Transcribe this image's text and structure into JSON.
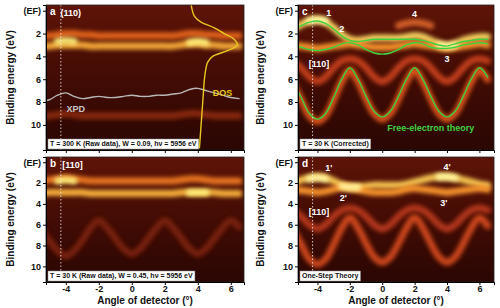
{
  "chart_data": [
    {
      "type": "band_map",
      "panel_label": "a",
      "note": "T = 300 K (Raw data), W = 0.09, hν = 5956 eV",
      "ylabel": "Binding energy (eV)",
      "tick_labels": "y",
      "xlim": [
        -5.2,
        6.8
      ],
      "xticks": [
        -4,
        -2,
        0,
        2,
        4,
        6
      ],
      "ylim": [
        -0.5,
        12.2
      ],
      "yticks": [
        {
          "value": 0,
          "label": "(EF)"
        },
        2,
        4,
        6,
        8,
        10
      ],
      "direction_x": -4.3,
      "x": [
        -5.5,
        -5,
        -4.5,
        -4,
        -3.5,
        -3,
        -2.5,
        -2,
        -1.5,
        -1,
        -0.5,
        0,
        0.5,
        1,
        1.5,
        2,
        2.5,
        3,
        3.5,
        4,
        4.5,
        5,
        5.5,
        6,
        6.5
      ],
      "series": [
        {
          "line_style": "glow",
          "color": "#e8661a",
          "values": [
            2.2,
            2.2,
            2.1,
            2.0,
            2.0,
            2.1,
            2.1,
            2.2,
            2.2,
            2.2,
            2.2,
            2.2,
            2.2,
            2.2,
            2.2,
            2.2,
            2.2,
            2.1,
            2.0,
            2.0,
            2.1,
            2.1,
            2.2,
            2.2,
            2.2
          ]
        },
        {
          "line_style": "glow",
          "color": "#ffb13a",
          "values": [
            3.1,
            3.1,
            3.0,
            3.0,
            3.0,
            3.0,
            3.1,
            3.1,
            3.1,
            3.1,
            3.1,
            3.1,
            3.1,
            3.1,
            3.1,
            3.1,
            3.1,
            3.0,
            2.9,
            2.9,
            3.0,
            3.0,
            3.1,
            3.1,
            3.1
          ]
        },
        {
          "line_style": "glow",
          "color": "#fff07a",
          "values": [
            null,
            null,
            2.7,
            2.6,
            2.7,
            null,
            null,
            null,
            null,
            null,
            null,
            null,
            null,
            null,
            null,
            null,
            null,
            null,
            2.8,
            2.7,
            2.8,
            null,
            null,
            null,
            null
          ]
        },
        {
          "line_style": "glow",
          "color": "#8c2a0c",
          "values": [
            9.2,
            9.2,
            9.1,
            9.0,
            9.1,
            9.2,
            9.2,
            9.2,
            9.2,
            9.2,
            9.2,
            9.2,
            9.2,
            9.2,
            9.2,
            9.2,
            9.2,
            9.1,
            9.0,
            9.0,
            9.1,
            9.2,
            9.2,
            9.2,
            9.2
          ]
        },
        {
          "line_style": "solid",
          "color": "#b8b8b8",
          "values": [
            8.0,
            7.8,
            7.4,
            7.2,
            7.5,
            7.7,
            7.6,
            7.5,
            7.6,
            7.6,
            7.5,
            7.4,
            7.5,
            7.5,
            7.4,
            7.4,
            7.3,
            7.2,
            6.9,
            6.8,
            7.0,
            7.2,
            7.4,
            7.6,
            7.7
          ]
        },
        {
          "line_style": "solid",
          "color": "#e8c81e",
          "x": [
            3.6,
            3.8,
            4.2,
            5.0,
            5.6,
            6.2,
            6.4,
            5.8,
            4.9,
            4.6,
            4.5,
            4.4,
            4.35,
            4.3,
            4.25,
            4.2,
            4.15,
            4.1
          ],
          "values": [
            -0.5,
            0.5,
            1.0,
            1.5,
            2.0,
            2.5,
            3.0,
            3.5,
            4.0,
            4.5,
            5,
            6,
            7,
            8,
            9,
            10,
            11,
            12
          ]
        }
      ],
      "annotations": [
        {
          "text": "(110)",
          "x": -3.7,
          "y": 0.2,
          "color": "#ffffff"
        },
        {
          "text": "XPD",
          "x": -3.4,
          "y": 8.6,
          "color": "#c8c8c8"
        },
        {
          "text": "DOS",
          "x": 5.5,
          "y": 7.2,
          "color": "#e8c81e"
        }
      ]
    },
    {
      "type": "band_map",
      "panel_label": "b",
      "note": "T = 30 K (Raw data), W = 0.45, hν = 5956 eV",
      "ylabel": "Binding energy (eV)",
      "xlabel": "Angle of detector (°)",
      "xlim": [
        -5.2,
        6.8
      ],
      "xticks": [
        -4,
        -2,
        0,
        2,
        4,
        6
      ],
      "ylim": [
        -0.5,
        11.5
      ],
      "yticks": [
        {
          "value": 0,
          "label": "(EF)"
        },
        2,
        4,
        6,
        8,
        10
      ],
      "direction_x": -4.3,
      "x": [
        -5.5,
        -5,
        -4.5,
        -4,
        -3.5,
        -3,
        -2.5,
        -2,
        -1.5,
        -1,
        -0.5,
        0,
        0.5,
        1,
        1.5,
        2,
        2.5,
        3,
        3.5,
        4,
        4.5,
        5,
        5.5,
        6,
        6.5
      ],
      "series": [
        {
          "line_style": "glow",
          "color": "#f07a22",
          "values": [
            1.8,
            1.7,
            1.6,
            1.5,
            1.6,
            1.7,
            1.8,
            1.8,
            1.8,
            1.8,
            1.8,
            1.8,
            1.8,
            1.8,
            1.8,
            1.8,
            1.8,
            1.7,
            1.6,
            1.6,
            1.7,
            1.8,
            1.8,
            1.8,
            1.8
          ]
        },
        {
          "line_style": "glow",
          "color": "#ffb83e",
          "values": [
            3.0,
            2.9,
            2.9,
            2.9,
            2.9,
            2.9,
            3.0,
            3.0,
            3.0,
            3.0,
            3.0,
            3.0,
            3.0,
            3.0,
            3.0,
            3.0,
            3.0,
            2.9,
            2.9,
            2.9,
            2.9,
            2.9,
            3.0,
            3.0,
            3.0
          ]
        },
        {
          "line_style": "glow",
          "color": "#fff07a",
          "values": [
            null,
            null,
            1.8,
            1.7,
            1.8,
            null,
            null,
            null,
            null,
            null,
            null,
            null,
            null,
            null,
            null,
            null,
            null,
            null,
            2.9,
            2.9,
            2.9,
            null,
            null,
            null,
            null
          ]
        },
        {
          "line_style": "glow",
          "color": "#7a220a",
          "values": [
            6.5,
            7.5,
            8.5,
            9.0,
            8.5,
            7.5,
            6.3,
            5.6,
            6.3,
            7.3,
            8.3,
            8.8,
            8.3,
            7.3,
            6.3,
            5.6,
            6.3,
            7.3,
            8.3,
            8.8,
            8.3,
            7.3,
            6.3,
            5.6,
            6.2
          ]
        }
      ],
      "annotations": [
        {
          "text": "[110]",
          "x": -3.6,
          "y": 0.3,
          "color": "#ffffff"
        }
      ]
    },
    {
      "type": "band_map",
      "panel_label": "c",
      "note": "T = 30 K (Corrected)",
      "ylabel": "Binding energy (eV)",
      "tick_labels": "y",
      "xlim": [
        -5.2,
        6.9
      ],
      "xticks": [
        -4,
        -2,
        0,
        2,
        4,
        6
      ],
      "ylim": [
        -0.5,
        12.2
      ],
      "yticks": [
        {
          "value": 0,
          "label": "(EF)"
        },
        2,
        4,
        6,
        8,
        10
      ],
      "direction_x": -4.3,
      "x": [
        -5.5,
        -5,
        -4.5,
        -4,
        -3.5,
        -3,
        -2.5,
        -2,
        -1.5,
        -1,
        -0.5,
        0,
        0.5,
        1,
        1.5,
        2,
        2.5,
        3,
        3.5,
        4,
        4.5,
        5,
        5.5,
        6,
        6.5
      ],
      "series": [
        {
          "line_style": "glow",
          "color": "#ffe066",
          "values": [
            1.6,
            1.2,
            0.9,
            0.8,
            1.0,
            1.5,
            2.1,
            2.5,
            2.6,
            2.5,
            2.4,
            2.4,
            2.4,
            2.4,
            2.3,
            2.2,
            2.3,
            2.6,
            2.9,
            3.1,
            2.9,
            2.6,
            2.4,
            2.3,
            2.3
          ]
        },
        {
          "line_style": "glow",
          "color": "#ff9a2e",
          "values": [
            3.0,
            3.1,
            3.2,
            3.3,
            3.2,
            3.1,
            3.0,
            2.9,
            3.0,
            3.1,
            3.2,
            3.2,
            3.2,
            3.1,
            3.0,
            2.9,
            3.0,
            3.1,
            3.2,
            3.3,
            3.2,
            3.1,
            3.0,
            2.9,
            3.0
          ]
        },
        {
          "line_style": "glow",
          "color": "#d8642a",
          "values": [
            null,
            null,
            null,
            null,
            null,
            null,
            null,
            null,
            null,
            null,
            null,
            null,
            null,
            1.3,
            1.1,
            1.0,
            1.1,
            1.3,
            null,
            null,
            null,
            null,
            null,
            null,
            null
          ]
        },
        {
          "line_style": "glow",
          "color": "#e0561c",
          "values": [
            6.4,
            7.8,
            9.2,
            9.7,
            9.2,
            7.8,
            6.2,
            5.2,
            6.2,
            7.7,
            9.0,
            9.5,
            9.0,
            7.7,
            6.2,
            5.2,
            6.2,
            7.7,
            9.0,
            9.5,
            9.0,
            7.7,
            6.2,
            5.2,
            6.0
          ]
        },
        {
          "line_style": "glow",
          "color": "#c8401a",
          "values": [
            4.5,
            5.0,
            5.8,
            6.2,
            5.8,
            5.0,
            4.4,
            4.2,
            4.4,
            5.0,
            5.8,
            6.2,
            5.8,
            5.0,
            4.4,
            4.2,
            4.4,
            5.0,
            5.8,
            6.2,
            5.8,
            5.0,
            4.4,
            4.2,
            4.4
          ]
        },
        {
          "line_style": "glow",
          "color": "#fff6a0",
          "values": [
            null,
            null,
            0.9,
            0.8,
            0.9,
            null,
            null,
            null,
            null,
            null,
            null,
            null,
            null,
            null,
            null,
            null,
            null,
            null,
            3.0,
            3.1,
            3.0,
            null,
            null,
            null,
            null
          ]
        },
        {
          "line_style": "solid",
          "color": "#3fd23f",
          "values": [
            1.6,
            1.3,
            1.0,
            0.9,
            1.1,
            1.6,
            2.2,
            2.6,
            2.7,
            2.6,
            2.5,
            2.5,
            2.5,
            2.5,
            2.5,
            2.5,
            2.6,
            2.8,
            3.0,
            3.1,
            2.9,
            2.7,
            2.6,
            2.5,
            2.5
          ]
        },
        {
          "line_style": "solid",
          "color": "#3fd23f",
          "values": [
            3.0,
            3.2,
            3.4,
            3.5,
            3.4,
            3.2,
            2.9,
            2.8,
            3.0,
            3.4,
            3.7,
            3.8,
            3.7,
            3.4,
            3.0,
            2.8,
            2.9,
            3.2,
            3.3,
            3.3,
            3.2,
            3.0,
            2.9,
            2.8,
            2.9
          ]
        },
        {
          "line_style": "solid",
          "color": "#3fd23f",
          "values": [
            6.2,
            7.6,
            9.0,
            9.5,
            9.0,
            7.6,
            6.0,
            5.0,
            6.0,
            7.5,
            8.8,
            9.3,
            8.8,
            7.5,
            6.0,
            5.0,
            6.0,
            7.5,
            8.8,
            9.3,
            8.8,
            7.5,
            6.0,
            5.0,
            5.8
          ]
        }
      ],
      "annotations": [
        {
          "text": "1",
          "x": -3.3,
          "y": 0.2,
          "color": "#ffffff"
        },
        {
          "text": "2",
          "x": -2.5,
          "y": 1.6,
          "color": "#ffffff"
        },
        {
          "text": "3",
          "x": 4.0,
          "y": 4.2,
          "color": "#ffffff"
        },
        {
          "text": "4",
          "x": 2.0,
          "y": 0.3,
          "color": "#ffffff"
        },
        {
          "text": "[110]",
          "x": -3.9,
          "y": 4.7,
          "color": "#ffffff"
        },
        {
          "text": "Free-electron theory",
          "x": 3.0,
          "y": 10.3,
          "color": "#3fd23f"
        }
      ]
    },
    {
      "type": "band_map",
      "panel_label": "d",
      "note": "One-Step Theory",
      "ylabel": "Binding energy (eV)",
      "xlabel": "Angle of detector (°)",
      "xlim": [
        -5.2,
        6.9
      ],
      "xticks": [
        -4,
        -2,
        0,
        2,
        4,
        6
      ],
      "ylim": [
        -0.5,
        11.5
      ],
      "yticks": [
        {
          "value": 0,
          "label": "(EF)"
        },
        2,
        4,
        6,
        8,
        10
      ],
      "direction_x": -4.3,
      "x": [
        -5.5,
        -5,
        -4.5,
        -4,
        -3.5,
        -3,
        -2.5,
        -2,
        -1.5,
        -1,
        -0.5,
        0,
        0.5,
        1,
        1.5,
        2,
        2.5,
        3,
        3.5,
        4,
        4.5,
        5,
        5.5,
        6,
        6.5
      ],
      "series": [
        {
          "line_style": "glow",
          "color": "#ffcf55",
          "values": [
            2.0,
            1.7,
            1.5,
            1.4,
            1.5,
            1.8,
            2.2,
            2.4,
            2.4,
            2.3,
            2.2,
            2.2,
            2.2,
            2.2,
            2.1,
            1.9,
            1.7,
            1.5,
            1.4,
            1.4,
            1.5,
            1.7,
            1.9,
            2.1,
            2.2
          ]
        },
        {
          "line_style": "glow",
          "color": "#ff9a2e",
          "values": [
            2.6,
            2.7,
            2.8,
            2.9,
            2.8,
            2.6,
            2.4,
            2.4,
            2.6,
            2.8,
            2.9,
            2.9,
            2.9,
            2.8,
            2.6,
            2.5,
            2.6,
            2.7,
            2.8,
            2.9,
            2.8,
            2.7,
            2.6,
            2.5,
            2.6
          ]
        },
        {
          "line_style": "glow",
          "color": "#fff6a0",
          "values": [
            null,
            null,
            1.6,
            1.5,
            1.6,
            null,
            2.3,
            2.4,
            2.4,
            null,
            null,
            null,
            null,
            null,
            null,
            null,
            null,
            null,
            1.4,
            1.4,
            1.5,
            null,
            null,
            null,
            null
          ]
        },
        {
          "line_style": "glow",
          "color": "#d24a1a",
          "values": [
            6.5,
            7.9,
            9.3,
            9.8,
            9.3,
            7.9,
            6.3,
            5.3,
            6.3,
            7.8,
            9.1,
            9.6,
            9.1,
            7.8,
            6.3,
            5.3,
            6.3,
            7.8,
            9.1,
            9.6,
            9.1,
            7.8,
            6.3,
            5.3,
            6.1
          ]
        },
        {
          "line_style": "glow",
          "color": "#b8381a",
          "values": [
            4.6,
            5.2,
            6.0,
            6.4,
            6.0,
            5.2,
            4.6,
            4.4,
            4.6,
            5.2,
            6.0,
            6.4,
            6.0,
            5.2,
            4.6,
            4.4,
            4.6,
            5.2,
            6.0,
            6.4,
            6.0,
            5.2,
            4.6,
            4.4,
            4.6
          ]
        }
      ],
      "annotations": [
        {
          "text": "1'",
          "x": -3.3,
          "y": 0.6,
          "color": "#ffffff"
        },
        {
          "text": "2'",
          "x": -2.4,
          "y": 3.4,
          "color": "#ffffff"
        },
        {
          "text": "4'",
          "x": 4.0,
          "y": 0.5,
          "color": "#ffffff"
        },
        {
          "text": "3'",
          "x": 3.8,
          "y": 3.9,
          "color": "#ffffff"
        },
        {
          "text": "[110]",
          "x": -3.9,
          "y": 4.8,
          "color": "#ffffff"
        }
      ]
    }
  ]
}
